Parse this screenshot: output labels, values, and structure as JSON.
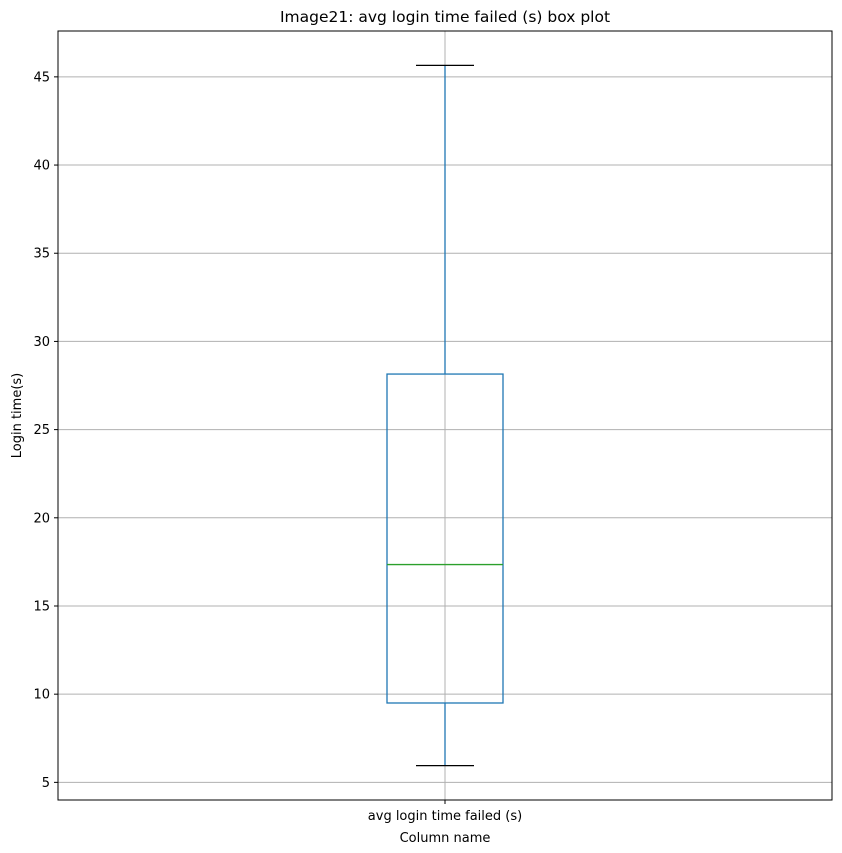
{
  "chart_data": {
    "type": "box",
    "title": "Image21: avg login time failed (s) box plot",
    "xlabel": "Column name",
    "ylabel": "Login time(s)",
    "categories": [
      "avg login time failed (s)"
    ],
    "box": {
      "whisker_low": 5.95,
      "q1": 9.5,
      "median": 17.35,
      "q3": 28.15,
      "whisker_high": 45.65
    },
    "ylim": [
      4.0,
      47.6
    ],
    "yticks": [
      5,
      10,
      15,
      20,
      25,
      30,
      35,
      40,
      45
    ],
    "grid": true,
    "colors": {
      "box": "#1f77b4",
      "whisker": "#1f77b4",
      "median": "#2ca02c",
      "cap": "#000000",
      "grid": "#b0b0b0"
    }
  }
}
